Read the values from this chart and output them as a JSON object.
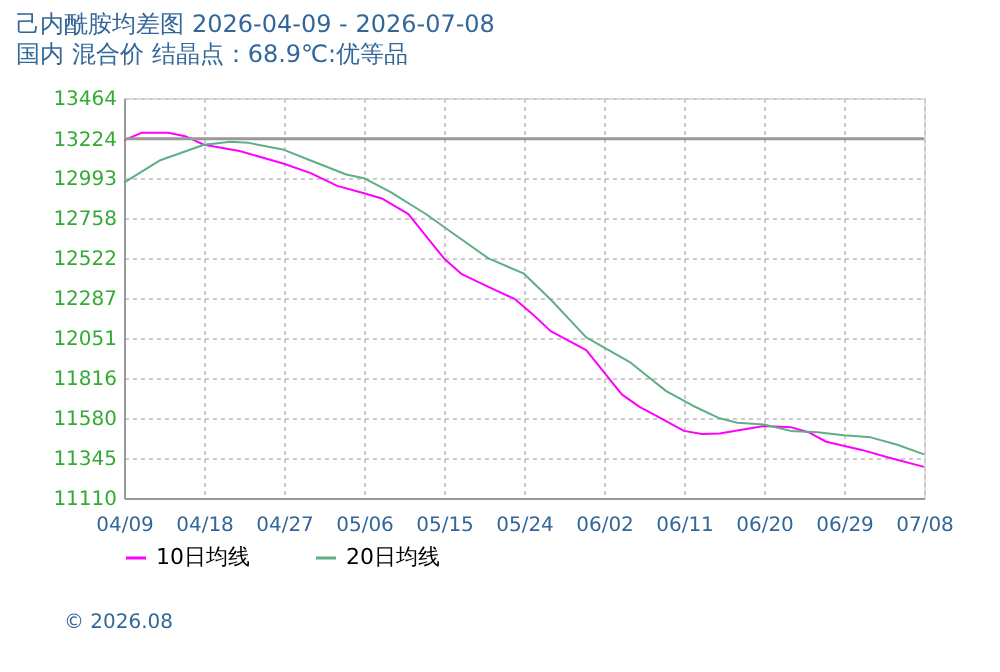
{
  "chart_data": {
    "type": "line",
    "title": "己内酰胺均差图 2026-04-09 - 2026-07-08",
    "subtitle": "国内 混合价 结晶点：68.9℃:优等品",
    "annotations": [
      "© 2026.08"
    ],
    "xlim": [
      "2026-04-09",
      "2026-07-08"
    ],
    "xticks": [
      {
        "value": "2026-04-09",
        "label": "04/09"
      },
      {
        "value": "2026-04-18",
        "label": "04/18"
      },
      {
        "value": "2026-04-27",
        "label": "04/27"
      },
      {
        "value": "2026-05-06",
        "label": "05/06"
      },
      {
        "value": "2026-05-15",
        "label": "05/15"
      },
      {
        "value": "2026-05-24",
        "label": "05/24"
      },
      {
        "value": "2026-06-02",
        "label": "06/02"
      },
      {
        "value": "2026-06-11",
        "label": "06/11"
      },
      {
        "value": "2026-06-20",
        "label": "06/20"
      },
      {
        "value": "2026-06-29",
        "label": "06/29"
      },
      {
        "value": "2026-07-08",
        "label": "07/08"
      }
    ],
    "ylim": [
      11110,
      13464
    ],
    "yticks": [
      11110,
      11345,
      11580,
      11816,
      12051,
      12287,
      12522,
      12758,
      12993,
      13224,
      13464
    ],
    "ref_lines": [
      {
        "axis": "y",
        "value": 13224,
        "color": "#999999"
      }
    ],
    "grid": true,
    "legend": "bottom left",
    "marker": "none",
    "line_style": "solid",
    "series": [
      {
        "name": "10日均线",
        "color": "#ff00ff",
        "x": [
          "2026-04-09",
          "2026-04-11",
          "2026-04-14",
          "2026-04-16",
          "2026-04-18",
          "2026-04-22",
          "2026-04-27",
          "2026-04-30",
          "2026-05-03",
          "2026-05-06",
          "2026-05-08",
          "2026-05-11",
          "2026-05-13",
          "2026-05-15",
          "2026-05-17",
          "2026-05-20",
          "2026-05-23",
          "2026-05-25",
          "2026-05-27",
          "2026-05-31",
          "2026-06-04",
          "2026-06-06",
          "2026-06-08",
          "2026-06-11",
          "2026-06-13",
          "2026-06-15",
          "2026-06-18",
          "2026-06-20",
          "2026-06-23",
          "2026-06-25",
          "2026-06-27",
          "2026-07-01",
          "2026-07-04",
          "2026-07-08"
        ],
        "values": [
          13215,
          13260,
          13260,
          13237,
          13189,
          13152,
          13077,
          13022,
          12947,
          12903,
          12873,
          12780,
          12650,
          12520,
          12427,
          12352,
          12280,
          12190,
          12092,
          11980,
          11720,
          11646,
          11590,
          11505,
          11486,
          11490,
          11516,
          11534,
          11527,
          11497,
          11441,
          11393,
          11348,
          11293
        ]
      },
      {
        "name": "20日均线",
        "color": "#5fae85",
        "x": [
          "2026-04-09",
          "2026-04-13",
          "2026-04-18",
          "2026-04-21",
          "2026-04-23",
          "2026-04-27",
          "2026-04-30",
          "2026-05-04",
          "2026-05-06",
          "2026-05-09",
          "2026-05-13",
          "2026-05-16",
          "2026-05-20",
          "2026-05-24",
          "2026-05-27",
          "2026-05-31",
          "2026-06-05",
          "2026-06-09",
          "2026-06-12",
          "2026-06-15",
          "2026-06-17",
          "2026-06-20",
          "2026-06-23",
          "2026-06-26",
          "2026-06-29",
          "2026-07-02",
          "2026-07-05",
          "2026-07-08"
        ],
        "values": [
          12966,
          13096,
          13189,
          13207,
          13200,
          13159,
          13096,
          13014,
          12992,
          12910,
          12780,
          12668,
          12520,
          12430,
          12278,
          12055,
          11906,
          11739,
          11653,
          11579,
          11553,
          11542,
          11505,
          11497,
          11479,
          11467,
          11423,
          11367
        ]
      }
    ]
  }
}
